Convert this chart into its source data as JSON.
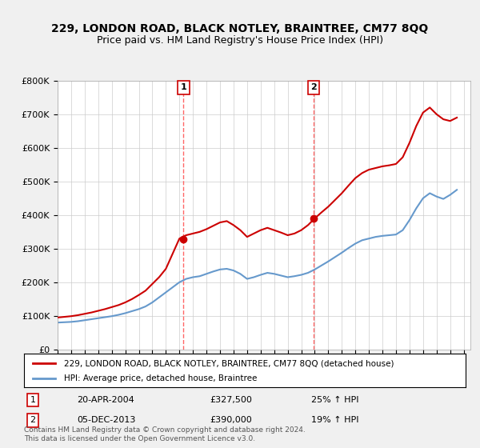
{
  "title": "229, LONDON ROAD, BLACK NOTLEY, BRAINTREE, CM77 8QQ",
  "subtitle": "Price paid vs. HM Land Registry's House Price Index (HPI)",
  "ylabel_ticks": [
    "£0",
    "£100K",
    "£200K",
    "£300K",
    "£400K",
    "£500K",
    "£600K",
    "£700K",
    "£800K"
  ],
  "ytick_values": [
    0,
    100000,
    200000,
    300000,
    400000,
    500000,
    600000,
    700000,
    800000
  ],
  "ylim": [
    0,
    800000
  ],
  "xlim_start": 1995.0,
  "xlim_end": 2025.5,
  "legend_label_red": "229, LONDON ROAD, BLACK NOTLEY, BRAINTREE, CM77 8QQ (detached house)",
  "legend_label_blue": "HPI: Average price, detached house, Braintree",
  "sale1_label": "1",
  "sale1_date": "20-APR-2004",
  "sale1_price": "£327,500",
  "sale1_hpi": "25% ↑ HPI",
  "sale1_x": 2004.3,
  "sale1_y": 327500,
  "sale2_label": "2",
  "sale2_date": "05-DEC-2013",
  "sale2_price": "£390,000",
  "sale2_hpi": "19% ↑ HPI",
  "sale2_x": 2013.92,
  "sale2_y": 390000,
  "vline1_x": 2004.3,
  "vline2_x": 2013.92,
  "copyright_text": "Contains HM Land Registry data © Crown copyright and database right 2024.\nThis data is licensed under the Open Government Licence v3.0.",
  "red_color": "#cc0000",
  "blue_color": "#6699cc",
  "vline_color": "#ff6666",
  "background_color": "#f0f0f0",
  "plot_bg_color": "#ffffff",
  "hpi_years": [
    1995,
    1995.5,
    1996,
    1996.5,
    1997,
    1997.5,
    1998,
    1998.5,
    1999,
    1999.5,
    2000,
    2000.5,
    2001,
    2001.5,
    2002,
    2002.5,
    2003,
    2003.5,
    2004,
    2004.5,
    2005,
    2005.5,
    2006,
    2006.5,
    2007,
    2007.5,
    2008,
    2008.5,
    2009,
    2009.5,
    2010,
    2010.5,
    2011,
    2011.5,
    2012,
    2012.5,
    2013,
    2013.5,
    2014,
    2014.5,
    2015,
    2015.5,
    2016,
    2016.5,
    2017,
    2017.5,
    2018,
    2018.5,
    2019,
    2019.5,
    2020,
    2020.5,
    2021,
    2021.5,
    2022,
    2022.5,
    2023,
    2023.5,
    2024,
    2024.5
  ],
  "hpi_values": [
    80000,
    81000,
    82000,
    84000,
    87000,
    90000,
    93000,
    96000,
    99000,
    103000,
    108000,
    114000,
    120000,
    128000,
    140000,
    155000,
    170000,
    185000,
    200000,
    210000,
    215000,
    218000,
    225000,
    232000,
    238000,
    240000,
    235000,
    225000,
    210000,
    215000,
    222000,
    228000,
    225000,
    220000,
    215000,
    218000,
    222000,
    228000,
    238000,
    250000,
    262000,
    275000,
    288000,
    302000,
    315000,
    325000,
    330000,
    335000,
    338000,
    340000,
    342000,
    355000,
    385000,
    420000,
    450000,
    465000,
    455000,
    448000,
    460000,
    475000
  ],
  "price_years": [
    1995,
    1995.5,
    1996,
    1996.5,
    1997,
    1997.5,
    1998,
    1998.5,
    1999,
    1999.5,
    2000,
    2000.5,
    2001,
    2001.5,
    2002,
    2002.5,
    2003,
    2003.5,
    2004,
    2004.5,
    2005,
    2005.5,
    2006,
    2006.5,
    2007,
    2007.5,
    2008,
    2008.5,
    2009,
    2009.5,
    2010,
    2010.5,
    2011,
    2011.5,
    2012,
    2012.5,
    2013,
    2013.5,
    2014,
    2014.5,
    2015,
    2015.5,
    2016,
    2016.5,
    2017,
    2017.5,
    2018,
    2018.5,
    2019,
    2019.5,
    2020,
    2020.5,
    2021,
    2021.5,
    2022,
    2022.5,
    2023,
    2023.5,
    2024,
    2024.5
  ],
  "price_values": [
    95000,
    97000,
    99000,
    102000,
    106000,
    110000,
    115000,
    120000,
    126000,
    132000,
    140000,
    150000,
    162000,
    175000,
    195000,
    215000,
    240000,
    285000,
    330000,
    340000,
    345000,
    350000,
    358000,
    368000,
    378000,
    382000,
    370000,
    355000,
    335000,
    345000,
    355000,
    362000,
    355000,
    348000,
    340000,
    345000,
    355000,
    370000,
    390000,
    408000,
    425000,
    445000,
    465000,
    488000,
    510000,
    525000,
    535000,
    540000,
    545000,
    548000,
    552000,
    572000,
    615000,
    665000,
    705000,
    720000,
    700000,
    685000,
    680000,
    690000
  ]
}
